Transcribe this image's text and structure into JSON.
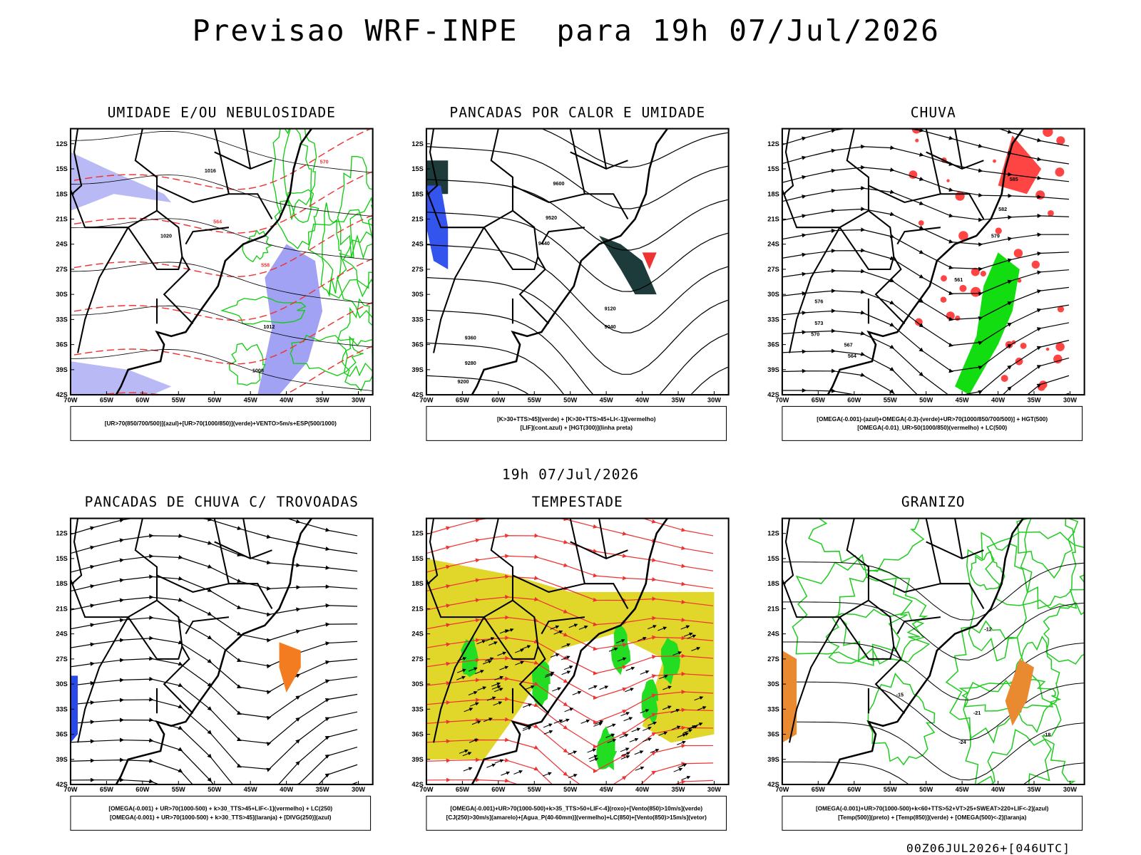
{
  "title": "Previsao WRF-INPE  para 19h 07/Jul/2026",
  "subtitle": "19h 07/Jul/2026",
  "footer": "00Z06JUL2026+[046UTC]",
  "axes": {
    "lat_labels": [
      "12S",
      "15S",
      "18S",
      "21S",
      "24S",
      "27S",
      "30S",
      "33S",
      "36S",
      "39S",
      "42S"
    ],
    "lon_labels": [
      "70W",
      "65W",
      "60W",
      "55W",
      "50W",
      "45W",
      "40W",
      "35W",
      "30W"
    ]
  },
  "panels": [
    {
      "title": "UMIDADE E/OU NEBULOSIDADE",
      "legend": [
        "[UR>70(850/700/500)](azul)+[UR>70(1000/850)](verde)+VENTO>5m/s+ESP(500/1000)"
      ],
      "contour_labels": [
        "1016",
        "1020",
        "1012",
        "1008",
        "570",
        "564",
        "558"
      ]
    },
    {
      "title": "PANCADAS POR CALOR E UMIDADE",
      "legend": [
        "[K>30+TTS>45](verde) + [K>30+TTS>45+LI<-1](vermelho)",
        "[LIF](cont.azul) + [HGT(300)](linha preta)"
      ],
      "contour_labels": [
        "9600",
        "9520",
        "9440",
        "9360",
        "9280",
        "9200",
        "9120",
        "9040"
      ]
    },
    {
      "title": "CHUVA",
      "legend": [
        "[OMEGA(-0.001)-(azul)+OMEGA(-0.3)-(verde)+UR>70(1000/850/700/500)] + HGT(500)",
        "[OMEGA(-0.01)_UR>50(1000/850)(vermelho) + LC(500)"
      ],
      "contour_labels": [
        "585",
        "582",
        "579",
        "576",
        "573",
        "570",
        "567",
        "564",
        "561"
      ]
    },
    {
      "title": "PANCADAS DE CHUVA C/ TROVOADAS",
      "legend": [
        "[OMEGA(-0.001) + UR>70(1000-500) + k>30_TTS>45+LIF<-1](vermelho) + LC(250)",
        "[OMEGA(-0.001) + UR>70(1000-500) + k>30_TTS>45](laranja) + [DIVG(250)](azul)"
      ]
    },
    {
      "title": "TEMPESTADE",
      "legend": [
        "[OMEGA(-0.001)+UR>70(1000-500)+k>35_TTS>50+LIF<-4](roxo)+[Vento(850)>10m/s](verde)",
        "[CJ(250)>30m/s](amarelo)+[Agua_P(40-60mm)](vermelho)+LC(850)+[Vento(850)>15m/s](vetor)"
      ]
    },
    {
      "title": "GRANIZO",
      "legend": [
        "[OMEGA(-0.001)+UR>70(1000-500)+k<60+TTS>52+VT>25+SWEAT>220+LIF<-2](azul)",
        "[Temp(500)](preto) + [Temp(850)](verde) + [OMEGA(500)<-2](laranja)"
      ],
      "contour_labels": [
        "-12",
        "-15",
        "-18",
        "-21",
        "-24"
      ]
    }
  ]
}
